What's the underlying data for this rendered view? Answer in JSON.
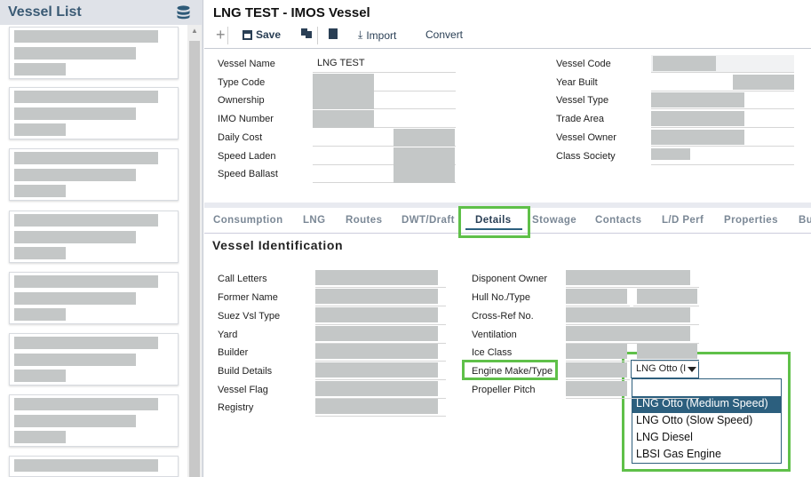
{
  "sidebar": {
    "title": "Vessel List",
    "icon": "database-icon",
    "card_count": 8
  },
  "header": {
    "title": "LNG TEST - IMOS Vessel"
  },
  "toolbar": {
    "add": "+",
    "save": "Save",
    "import": "Import",
    "convert": "Convert"
  },
  "form": {
    "left": [
      {
        "label": "Vessel Name",
        "value": "LNG TEST"
      },
      {
        "label": "Type Code"
      },
      {
        "label": "Ownership"
      },
      {
        "label": "IMO Number"
      },
      {
        "label": "Daily Cost"
      },
      {
        "label": "Speed Laden"
      },
      {
        "label": "Speed Ballast"
      }
    ],
    "right": [
      {
        "label": "Vessel Code"
      },
      {
        "label": "Year Built"
      },
      {
        "label": "Vessel Type"
      },
      {
        "label": "Trade Area"
      },
      {
        "label": "Vessel Owner"
      },
      {
        "label": "Class Society"
      }
    ]
  },
  "tabs": [
    {
      "label": "Consumption"
    },
    {
      "label": "LNG"
    },
    {
      "label": "Routes"
    },
    {
      "label": "DWT/Draft"
    },
    {
      "label": "Details",
      "active": true
    },
    {
      "label": "Stowage"
    },
    {
      "label": "Contacts"
    },
    {
      "label": "L/D Perf"
    },
    {
      "label": "Properties"
    },
    {
      "label": "Bu"
    }
  ],
  "details": {
    "section_title": "Vessel Identification",
    "left": [
      "Call Letters",
      "Former Name",
      "Suez Vsl Type",
      "Yard",
      "Builder",
      "Build Details",
      "Vessel Flag",
      "Registry"
    ],
    "right": [
      "Disponent Owner",
      "Hull No./Type",
      "Cross-Ref No.",
      "Ventilation",
      "Ice Class",
      "Engine Make/Type",
      "Propeller Pitch"
    ],
    "engine_select": {
      "value": "LNG Otto (I",
      "options": [
        "",
        "LNG Otto (Medium Speed)",
        "LNG Otto (Slow Speed)",
        "LNG Diesel",
        "LBSI Gas Engine"
      ],
      "highlighted": "LNG Otto (Medium Speed)"
    }
  },
  "colors": {
    "highlight": "#5fc049",
    "accent": "#2c5f7e",
    "redacted": "#c4c7c7"
  }
}
